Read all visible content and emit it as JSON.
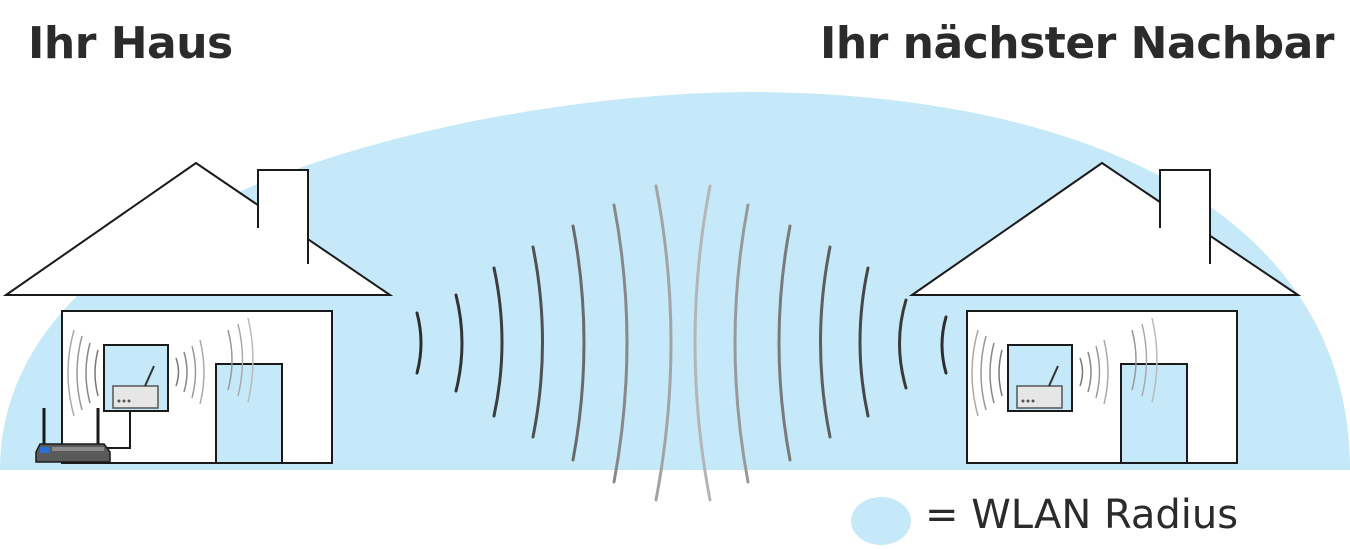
{
  "labels": {
    "your_house": "Ihr Haus",
    "neighbor_house": "Ihr nächster Nachbar",
    "legend": "= WLAN Radius"
  },
  "colors": {
    "wlan_radius": "#c5e9f8",
    "house_outline": "#1a1a1a",
    "wave_dark": "#333333",
    "wave_light": "#aaaaaa",
    "text": "#2b2b2b"
  },
  "icons": [
    "house-icon",
    "router-icon",
    "wifi-wave-icon",
    "legend-circle-icon"
  ]
}
